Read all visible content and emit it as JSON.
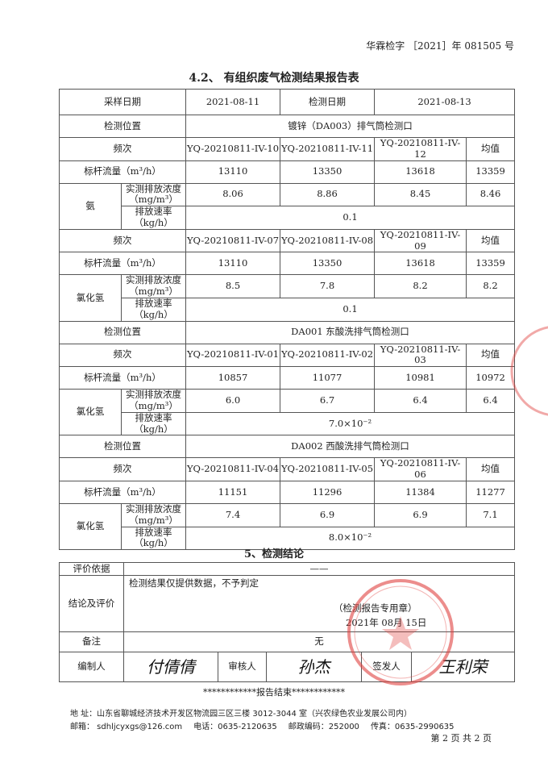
{
  "header": {
    "doc_number": "华霖检字 ［2021］年 081505 号"
  },
  "title": "4.2、  有组织废气检测结果报告表",
  "table": {
    "sampling_date_label": "采样日期",
    "sampling_date": "2021-08-11",
    "test_date_label": "检测日期",
    "test_date": "2021-08-13",
    "location_label": "检测位置",
    "freq_label": "频次",
    "avg_label": "均值",
    "flow_label": "标杆流量（m³/h）",
    "conc_label": "实测排放浓度（mg/m³）",
    "rate_label": "排放速率（kg/h）",
    "groups": [
      {
        "location": "镀锌（DA003）排气筒检测口",
        "blocks": [
          {
            "pollutant": "氨",
            "samples": [
              "YQ-20210811-IV-10",
              "YQ-20210811-IV-11",
              "YQ-20210811-IV-12"
            ],
            "flow": [
              "13110",
              "13350",
              "13618",
              "13359"
            ],
            "conc": [
              "8.06",
              "8.86",
              "8.45",
              "8.46"
            ],
            "rate": "0.1"
          },
          {
            "pollutant": "氯化氢",
            "samples": [
              "YQ-20210811-IV-07",
              "YQ-20210811-IV-08",
              "YQ-20210811-IV-09"
            ],
            "flow": [
              "13110",
              "13350",
              "13618",
              "13359"
            ],
            "conc": [
              "8.5",
              "7.8",
              "8.2",
              "8.2"
            ],
            "rate": "0.1"
          }
        ]
      },
      {
        "location": "DA001 东酸洗排气筒检测口",
        "blocks": [
          {
            "pollutant": "氯化氢",
            "samples": [
              "YQ-20210811-IV-01",
              "YQ-20210811-IV-02",
              "YQ-20210811-IV-03"
            ],
            "flow": [
              "10857",
              "11077",
              "10981",
              "10972"
            ],
            "conc": [
              "6.0",
              "6.7",
              "6.4",
              "6.4"
            ],
            "rate": "7.0×10⁻²"
          }
        ]
      },
      {
        "location": "DA002 西酸洗排气筒检测口",
        "blocks": [
          {
            "pollutant": "氯化氢",
            "samples": [
              "YQ-20210811-IV-04",
              "YQ-20210811-IV-05",
              "YQ-20210811-IV-06"
            ],
            "flow": [
              "11151",
              "11296",
              "11384",
              "11277"
            ],
            "conc": [
              "7.4",
              "6.9",
              "6.9",
              "7.1"
            ],
            "rate": "8.0×10⁻²"
          }
        ]
      }
    ]
  },
  "conclusion": {
    "title": "5、检测结论",
    "basis_label": "评价依据",
    "basis": "——",
    "eval_label": "结论及评价",
    "eval": "检测结果仅提供数据，不予判定",
    "stamp_note": "（检测报告专用章）",
    "stamp_date": "2021年 08月 15日",
    "remark_label": "备注",
    "remark": "无",
    "editor_label": "编制人",
    "editor_sig": "付倩倩",
    "reviewer_label": "审核人",
    "reviewer_sig": "孙杰",
    "issuer_label": "签发人",
    "issuer_sig": "王利荣"
  },
  "end_line": "************报告结束************",
  "footer": {
    "address": "地  址：山东省聊城经济技术开发区物流园三区三楼 3012-3044 室（兴农绿色农业发展公司内）",
    "email": "邮箱：  sdhljcyxgs@126.com",
    "phone": "电话：0635-2120635",
    "postcode": "邮政编码：252000",
    "fax": "传真：0635-2990635",
    "page": "第 2 页 共 2  页"
  },
  "colors": {
    "stamp": "#e0413f"
  }
}
